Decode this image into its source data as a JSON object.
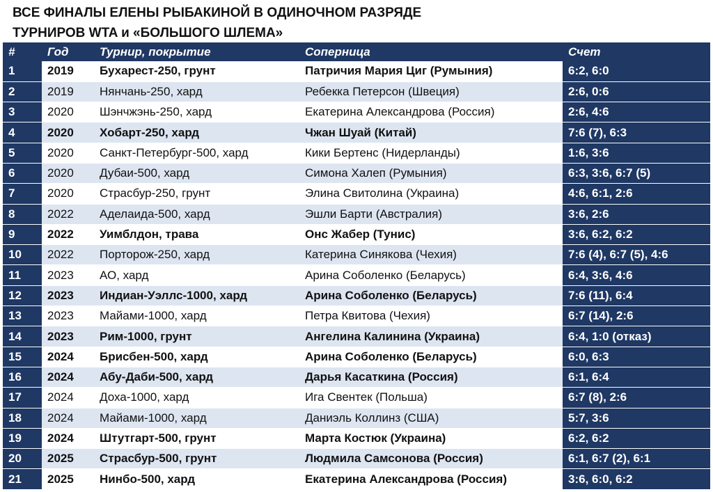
{
  "title": [
    "ВСЕ ФИНАЛЫ ЕЛЕНЫ РЫБАКИНОЙ В ОДИНОЧНОМ РАЗРЯДЕ",
    "ТУРНИРОВ WTA и «БОЛЬШОГО ШЛЕМА»"
  ],
  "table": {
    "header": [
      "#",
      "Год",
      "Турнир, покрытие",
      "Соперница",
      "Счет"
    ],
    "rows": [
      {
        "cells": [
          "1",
          "2019",
          "Бухарест-250, грунт",
          "Патричия Мария Циг (Румыния)",
          "6:2, 6:0"
        ],
        "bold": true
      },
      {
        "cells": [
          "2",
          "2019",
          "Нянчань-250, хард",
          "Ребекка Петерсон (Швеция)",
          "2:6, 0:6"
        ],
        "bold": false
      },
      {
        "cells": [
          "3",
          "2020",
          "Шэнчжэнь-250, хард",
          "Екатерина Александрова (Россия)",
          "2:6, 4:6"
        ],
        "bold": false
      },
      {
        "cells": [
          "4",
          "2020",
          "Хобарт-250, хард",
          "Чжан Шуай (Китай)",
          "7:6 (7), 6:3"
        ],
        "bold": true
      },
      {
        "cells": [
          "5",
          "2020",
          "Санкт-Петербург-500, хард",
          "Кики Бертенс (Нидерланды)",
          "1:6, 3:6"
        ],
        "bold": false
      },
      {
        "cells": [
          "6",
          "2020",
          "Дубаи-500, хард",
          "Симона Халеп (Румыния)",
          "6:3, 3:6, 6:7 (5)"
        ],
        "bold": false
      },
      {
        "cells": [
          "7",
          "2020",
          "Страсбур-250, грунт",
          "Элина Свитолина (Украина)",
          "4:6, 6:1, 2:6"
        ],
        "bold": false
      },
      {
        "cells": [
          "8",
          "2022",
          "Аделаида-500, хард",
          "Эшли Барти (Австралия)",
          "3:6, 2:6"
        ],
        "bold": false
      },
      {
        "cells": [
          "9",
          "2022",
          "Уимблдон, трава",
          "Онс Жабер (Тунис)",
          "3:6, 6:2, 6:2"
        ],
        "bold": true
      },
      {
        "cells": [
          "10",
          "2022",
          "Порторож-250, хард",
          "Катерина Синякова (Чехия)",
          "7:6 (4), 6:7 (5), 4:6"
        ],
        "bold": false
      },
      {
        "cells": [
          "11",
          "2023",
          "АО, хард",
          "Арина Соболенко (Беларусь)",
          "6:4, 3:6, 4:6"
        ],
        "bold": false
      },
      {
        "cells": [
          "12",
          "2023",
          "Индиан-Уэллс-1000, хард",
          "Арина Соболенко (Беларусь)",
          "7:6 (11), 6:4"
        ],
        "bold": true
      },
      {
        "cells": [
          "13",
          "2023",
          "Майами-1000, хард",
          "Петра Квитова (Чехия)",
          "6:7 (14), 2:6"
        ],
        "bold": false
      },
      {
        "cells": [
          "14",
          "2023",
          "Рим-1000, грунт",
          "Ангелина Калинина (Украина)",
          "6:4, 1:0 (отказ)"
        ],
        "bold": true
      },
      {
        "cells": [
          "15",
          "2024",
          "Брисбен-500, хард",
          "Арина Соболенко (Беларусь)",
          "6:0, 6:3"
        ],
        "bold": true
      },
      {
        "cells": [
          "16",
          "2024",
          "Абу-Даби-500, хард",
          "Дарья Касаткина (Россия)",
          "6:1, 6:4"
        ],
        "bold": true
      },
      {
        "cells": [
          "17",
          "2024",
          "Доха-1000, хард",
          "Ига Свентек (Польша)",
          "6:7 (8), 2:6"
        ],
        "bold": false
      },
      {
        "cells": [
          "18",
          "2024",
          "Майами-1000, хард",
          "Даниэль Коллинз (США)",
          "5:7, 3:6"
        ],
        "bold": false
      },
      {
        "cells": [
          "19",
          "2024",
          "Штутгарт-500, грунт",
          "Марта Костюк (Украина)",
          "6:2, 6:2"
        ],
        "bold": true
      },
      {
        "cells": [
          "20",
          "2025",
          "Страсбур-500, грунт",
          "Людмила Самсонова (Россия)",
          "6:1, 6:7 (2), 6:1"
        ],
        "bold": true
      },
      {
        "cells": [
          "21",
          "2025",
          "Нинбо-500, хард",
          "Екатерина Александрова (Россия)",
          "3:6, 6:0, 6:2"
        ],
        "bold": true
      }
    ]
  }
}
